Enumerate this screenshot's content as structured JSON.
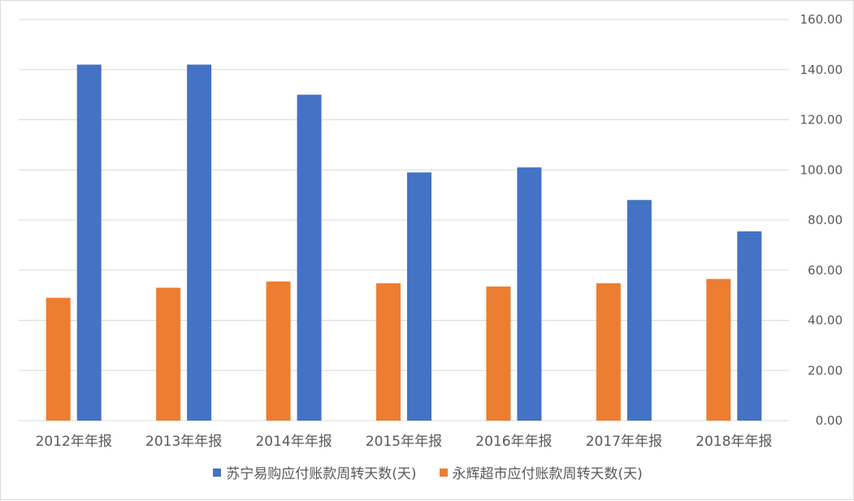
{
  "chart_data": {
    "type": "bar",
    "categories": [
      "2012年年报",
      "2013年年报",
      "2014年年报",
      "2015年年报",
      "2016年年报",
      "2017年年报",
      "2018年年报"
    ],
    "series": [
      {
        "name": "永辉超市应付账款周转天数(天)",
        "color": "#ED7D31",
        "values": [
          49,
          53,
          55.5,
          54.8,
          53.5,
          54.8,
          56.5
        ]
      },
      {
        "name": "苏宁易购应付账款周转天数(天)",
        "color": "#4472C4",
        "values": [
          142,
          142,
          130,
          99,
          101,
          88,
          75.5
        ]
      }
    ],
    "y_ticks": [
      "0.00",
      "20.00",
      "40.00",
      "60.00",
      "80.00",
      "100.00",
      "120.00",
      "140.00",
      "160.00"
    ],
    "ylim": [
      0,
      160
    ],
    "y_axis_side": "right",
    "grid": true,
    "legend": {
      "placement": "bottom",
      "order": [
        1,
        0
      ]
    }
  }
}
